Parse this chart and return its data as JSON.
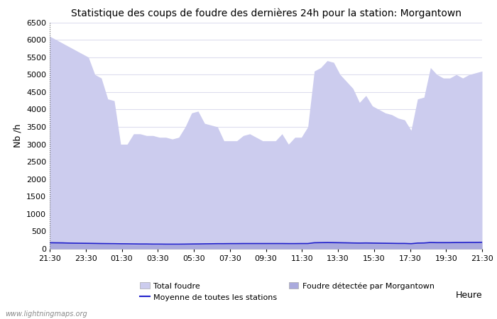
{
  "title": "Statistique des coups de foudre des dernières 24h pour la station: Morgantown",
  "ylabel": "Nb /h",
  "xlabel": "Heure",
  "ylim": [
    0,
    6500
  ],
  "yticks": [
    0,
    500,
    1000,
    1500,
    2000,
    2500,
    3000,
    3500,
    4000,
    4500,
    5000,
    5500,
    6000,
    6500
  ],
  "xtick_labels": [
    "21:30",
    "23:30",
    "01:30",
    "03:30",
    "05:30",
    "07:30",
    "09:30",
    "11:30",
    "13:30",
    "15:30",
    "17:30",
    "19:30",
    "21:30"
  ],
  "plot_bg_color": "#ffffff",
  "fig_bg_color": "#ffffff",
  "fill_total_color": "#ccccee",
  "fill_morgantown_color": "#aaaadd",
  "mean_line_color": "#2222cc",
  "grid_color": "#ddddee",
  "watermark": "www.lightningmaps.org",
  "total_foudre": [
    6100,
    6000,
    5900,
    5800,
    5700,
    5600,
    5500,
    5000,
    4900,
    4300,
    4250,
    3000,
    3000,
    3300,
    3300,
    3250,
    3250,
    3200,
    3200,
    3150,
    3200,
    3500,
    3900,
    3950,
    3600,
    3550,
    3500,
    3100,
    3100,
    3100,
    3250,
    3300,
    3200,
    3100,
    3100,
    3100,
    3300,
    3000,
    3200,
    3200,
    3500,
    5100,
    5200,
    5400,
    5350,
    5000,
    4800,
    4600,
    4200,
    4400,
    4100,
    4000,
    3900,
    3850,
    3750,
    3700,
    3400,
    4300,
    4350,
    5200,
    5000,
    4900,
    4900,
    5000,
    4900,
    5000,
    5050,
    5100
  ],
  "morgantown": [
    200,
    200,
    200,
    180,
    170,
    165,
    160,
    155,
    150,
    145,
    135,
    130,
    125,
    120,
    120,
    120,
    115,
    115,
    115,
    115,
    115,
    120,
    125,
    130,
    135,
    140,
    145,
    148,
    150,
    150,
    155,
    155,
    155,
    155,
    155,
    155,
    155,
    150,
    150,
    155,
    155,
    195,
    200,
    205,
    205,
    200,
    195,
    190,
    185,
    190,
    185,
    180,
    175,
    170,
    165,
    165,
    155,
    180,
    185,
    205,
    200,
    200,
    200,
    205,
    205,
    210,
    210,
    215
  ],
  "mean_values": [
    175,
    172,
    170,
    165,
    162,
    160,
    158,
    155,
    152,
    150,
    148,
    145,
    143,
    140,
    138,
    138,
    135,
    135,
    133,
    133,
    133,
    135,
    138,
    140,
    143,
    145,
    148,
    148,
    150,
    150,
    152,
    152,
    152,
    152,
    152,
    152,
    152,
    150,
    150,
    152,
    152,
    175,
    178,
    180,
    178,
    175,
    172,
    168,
    165,
    168,
    165,
    162,
    160,
    158,
    155,
    155,
    148,
    165,
    168,
    182,
    178,
    178,
    178,
    182,
    182,
    185,
    185,
    188
  ]
}
